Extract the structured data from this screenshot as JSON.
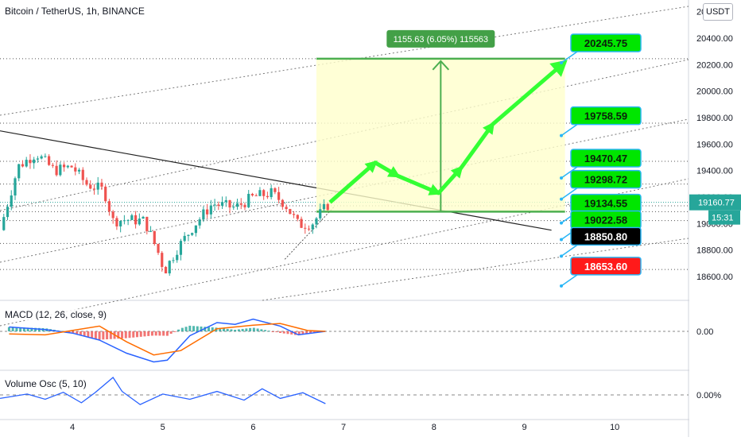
{
  "header": {
    "title": "Bitcoin / TetherUS, 1h, BINANCE",
    "currency_badge": "USDT"
  },
  "colors": {
    "up": "#26a69a",
    "down": "#ef5350",
    "green_label": "#00e600",
    "arrow": "#33ff33",
    "box": "#ffffcc",
    "macd": "#2962ff",
    "signal": "#ff6d00",
    "osc": "#2962ff"
  },
  "chart_data": [
    {
      "type": "line",
      "name": "price",
      "title": "Bitcoin / TetherUS, 1h, BINANCE",
      "x_ticks": [
        "4",
        "5",
        "6",
        "7",
        "8",
        "9",
        "10"
      ],
      "y_ticks": [
        "18600.00",
        "18800.00",
        "19000.00",
        "19200.00",
        "19400.00",
        "19600.00",
        "19800.00",
        "20000.00",
        "20200.00",
        "20400.00",
        "20600.00"
      ],
      "ylim": [
        18480,
        20640
      ],
      "xlim": [
        3.2,
        10.8
      ],
      "grid": false,
      "close_path": [
        {
          "x": 3.2,
          "y": 18950
        },
        {
          "x": 3.4,
          "y": 19430
        },
        {
          "x": 3.6,
          "y": 19530
        },
        {
          "x": 3.8,
          "y": 19400
        },
        {
          "x": 4.0,
          "y": 19430
        },
        {
          "x": 4.15,
          "y": 19300
        },
        {
          "x": 4.35,
          "y": 19250
        },
        {
          "x": 4.45,
          "y": 19020
        },
        {
          "x": 4.6,
          "y": 19030
        },
        {
          "x": 4.8,
          "y": 19020
        },
        {
          "x": 4.95,
          "y": 18780
        },
        {
          "x": 5.02,
          "y": 18640
        },
        {
          "x": 5.15,
          "y": 18800
        },
        {
          "x": 5.35,
          "y": 18990
        },
        {
          "x": 5.55,
          "y": 19150
        },
        {
          "x": 5.8,
          "y": 19120
        },
        {
          "x": 6.0,
          "y": 19200
        },
        {
          "x": 6.2,
          "y": 19230
        },
        {
          "x": 6.35,
          "y": 19150
        },
        {
          "x": 6.5,
          "y": 18990
        },
        {
          "x": 6.65,
          "y": 19000
        },
        {
          "x": 6.85,
          "y": 19160
        }
      ],
      "last_price": "19160.77",
      "countdown": "15:31",
      "measure_label": "1155.63 (6.05%) 115563",
      "target_labels": [
        {
          "text": "20245.75",
          "y": 20430,
          "kind": "green"
        },
        {
          "text": "19758.59",
          "y": 19880,
          "kind": "green"
        },
        {
          "text": "19470.47",
          "y": 19560,
          "kind": "green"
        },
        {
          "text": "19298.72",
          "y": 19400,
          "kind": "green"
        },
        {
          "text": "19134.55",
          "y": 19220,
          "kind": "green"
        },
        {
          "text": "19022.58",
          "y": 19095,
          "kind": "green"
        },
        {
          "text": "18850.80",
          "y": 18970,
          "kind": "black"
        },
        {
          "text": "18653.60",
          "y": 18745,
          "kind": "red"
        }
      ],
      "box": {
        "x0": 6.7,
        "x1": 9.45,
        "y0": 19090,
        "y1": 20245
      },
      "arrow_path": [
        {
          "x": 6.85,
          "y": 19160
        },
        {
          "x": 7.35,
          "y": 19460
        },
        {
          "x": 7.6,
          "y": 19360
        },
        {
          "x": 8.05,
          "y": 19230
        },
        {
          "x": 8.3,
          "y": 19420
        },
        {
          "x": 8.65,
          "y": 19750
        },
        {
          "x": 9.45,
          "y": 20220
        }
      ]
    },
    {
      "type": "line",
      "name": "MACD (12, 26, close, 9)",
      "title": "MACD (12, 26, close, 9)",
      "y_ticks": [
        "0.00"
      ],
      "ylim": [
        -50,
        25
      ],
      "macd": [
        {
          "x": 3.3,
          "y": 5
        },
        {
          "x": 3.7,
          "y": 2
        },
        {
          "x": 4.0,
          "y": -2
        },
        {
          "x": 4.3,
          "y": -10
        },
        {
          "x": 4.6,
          "y": -25
        },
        {
          "x": 4.9,
          "y": -35
        },
        {
          "x": 5.05,
          "y": -33
        },
        {
          "x": 5.3,
          "y": -5
        },
        {
          "x": 5.6,
          "y": 10
        },
        {
          "x": 5.8,
          "y": 8
        },
        {
          "x": 6.0,
          "y": 14
        },
        {
          "x": 6.3,
          "y": 6
        },
        {
          "x": 6.5,
          "y": -4
        },
        {
          "x": 6.8,
          "y": 0
        }
      ],
      "signal": [
        {
          "x": 3.3,
          "y": -3
        },
        {
          "x": 3.7,
          "y": -4
        },
        {
          "x": 4.0,
          "y": 1
        },
        {
          "x": 4.3,
          "y": 6
        },
        {
          "x": 4.6,
          "y": -12
        },
        {
          "x": 4.9,
          "y": -27
        },
        {
          "x": 5.2,
          "y": -22
        },
        {
          "x": 5.6,
          "y": 3
        },
        {
          "x": 6.0,
          "y": 7
        },
        {
          "x": 6.3,
          "y": 9
        },
        {
          "x": 6.6,
          "y": 1
        },
        {
          "x": 6.8,
          "y": 0
        }
      ]
    },
    {
      "type": "line",
      "name": "Volume Osc (5, 10)",
      "title": "Volume Osc (5, 10)",
      "y_ticks": [
        "0.00%"
      ],
      "ylim": [
        -40,
        60
      ],
      "osc": [
        {
          "x": 3.2,
          "y": -8
        },
        {
          "x": 3.5,
          "y": 2
        },
        {
          "x": 3.7,
          "y": -10
        },
        {
          "x": 3.9,
          "y": 6
        },
        {
          "x": 4.1,
          "y": -18
        },
        {
          "x": 4.25,
          "y": 5
        },
        {
          "x": 4.45,
          "y": 40
        },
        {
          "x": 4.55,
          "y": 8
        },
        {
          "x": 4.75,
          "y": -22
        },
        {
          "x": 5.0,
          "y": 2
        },
        {
          "x": 5.3,
          "y": -10
        },
        {
          "x": 5.6,
          "y": 8
        },
        {
          "x": 5.9,
          "y": -12
        },
        {
          "x": 6.1,
          "y": 14
        },
        {
          "x": 6.3,
          "y": -8
        },
        {
          "x": 6.55,
          "y": 5
        },
        {
          "x": 6.8,
          "y": -20
        }
      ]
    }
  ]
}
